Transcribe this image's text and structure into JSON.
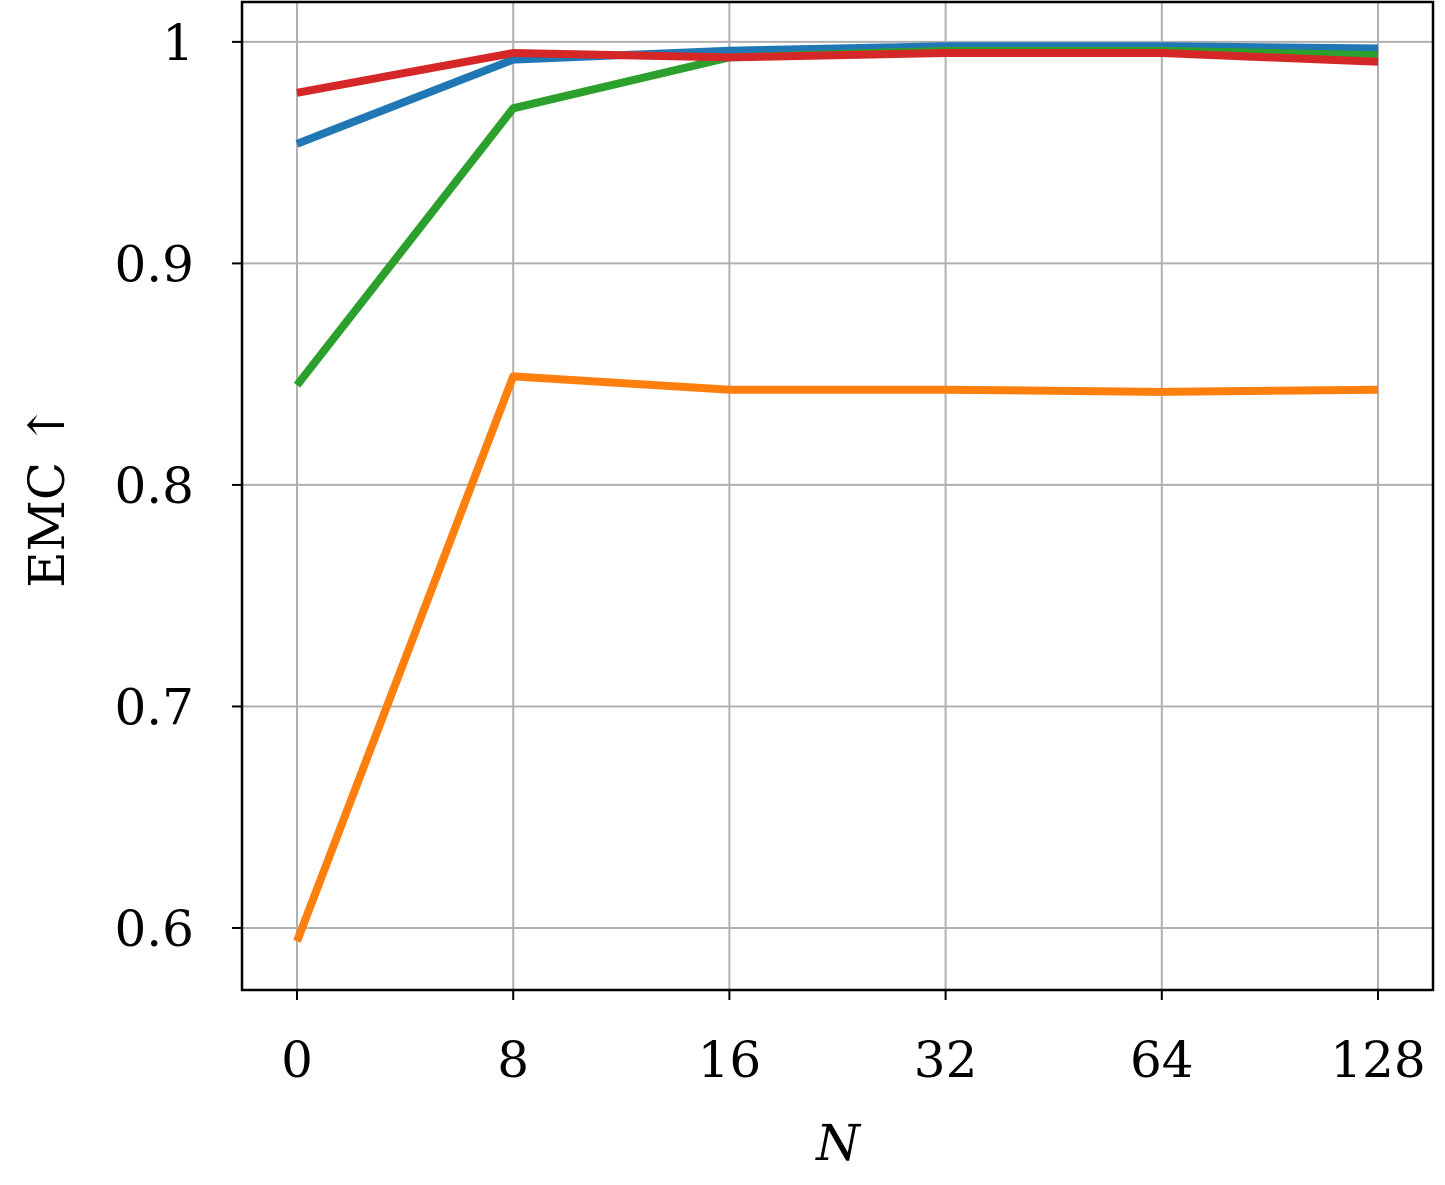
{
  "chart_data": {
    "type": "line",
    "title": "",
    "xlabel": "N",
    "ylabel": "EMC ↑",
    "categories": [
      "0",
      "8",
      "16",
      "32",
      "64",
      "128"
    ],
    "yticks": [
      {
        "value": 0.6,
        "label": "0.6"
      },
      {
        "value": 0.7,
        "label": "0.7"
      },
      {
        "value": 0.8,
        "label": "0.8"
      },
      {
        "value": 0.9,
        "label": "0.9"
      },
      {
        "value": 1.0,
        "label": "1"
      }
    ],
    "ylim": [
      0.572,
      1.018
    ],
    "grid": true,
    "legend": "none",
    "series": [
      {
        "color": "#1f77b4",
        "values": [
          0.954,
          0.992,
          0.996,
          0.998,
          0.998,
          0.997
        ]
      },
      {
        "color": "#ff7f0e",
        "values": [
          0.594,
          0.849,
          0.843,
          0.843,
          0.842,
          0.843
        ]
      },
      {
        "color": "#2ca02c",
        "values": [
          0.845,
          0.97,
          0.993,
          0.996,
          0.996,
          0.994
        ]
      },
      {
        "color": "#d62728",
        "values": [
          0.977,
          0.995,
          0.993,
          0.995,
          0.995,
          0.991
        ]
      }
    ]
  }
}
